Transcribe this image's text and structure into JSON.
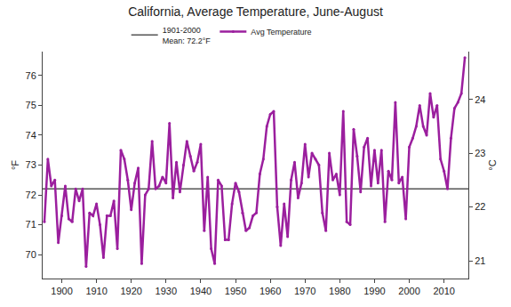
{
  "chart_data": {
    "type": "line",
    "title": "California, Average Temperature, June-August",
    "y_label": "°F",
    "y2_label": "°C",
    "x": [
      1895,
      1896,
      1897,
      1898,
      1899,
      1900,
      1901,
      1902,
      1903,
      1904,
      1905,
      1906,
      1907,
      1908,
      1909,
      1910,
      1911,
      1912,
      1913,
      1914,
      1915,
      1916,
      1917,
      1918,
      1919,
      1920,
      1921,
      1922,
      1923,
      1924,
      1925,
      1926,
      1927,
      1928,
      1929,
      1930,
      1931,
      1932,
      1933,
      1934,
      1935,
      1936,
      1937,
      1938,
      1939,
      1940,
      1941,
      1942,
      1943,
      1944,
      1945,
      1946,
      1947,
      1948,
      1949,
      1950,
      1951,
      1952,
      1953,
      1954,
      1955,
      1956,
      1957,
      1958,
      1959,
      1960,
      1961,
      1962,
      1963,
      1964,
      1965,
      1966,
      1967,
      1968,
      1969,
      1970,
      1971,
      1972,
      1973,
      1974,
      1975,
      1976,
      1977,
      1978,
      1979,
      1980,
      1981,
      1982,
      1983,
      1984,
      1985,
      1986,
      1987,
      1988,
      1989,
      1990,
      1991,
      1992,
      1993,
      1994,
      1995,
      1996,
      1997,
      1998,
      1999,
      2000,
      2001,
      2002,
      2003,
      2004,
      2005,
      2006,
      2007,
      2008,
      2009,
      2010,
      2011,
      2012,
      2013,
      2014,
      2015,
      2016
    ],
    "series": [
      {
        "name": "Avg Temperature",
        "color": "#9b1f9e",
        "marker": "circle",
        "line_style": "solid",
        "values": [
          71.1,
          73.2,
          72.3,
          72.5,
          70.4,
          71.3,
          72.3,
          71.2,
          71.1,
          72.2,
          71.8,
          72.2,
          69.6,
          71.4,
          71.3,
          71.7,
          71.0,
          69.9,
          71.3,
          71.3,
          71.8,
          70.2,
          73.5,
          73.2,
          72.5,
          71.5,
          72.4,
          72.9,
          69.7,
          72.0,
          72.2,
          73.8,
          72.2,
          72.3,
          72.6,
          72.4,
          74.4,
          71.9,
          73.1,
          72.1,
          73.0,
          73.8,
          73.3,
          72.8,
          73.1,
          73.7,
          70.8,
          72.6,
          70.2,
          69.7,
          72.5,
          72.3,
          70.5,
          70.5,
          71.7,
          72.4,
          72.1,
          71.4,
          70.8,
          70.9,
          71.3,
          71.4,
          72.7,
          73.2,
          74.3,
          74.7,
          74.8,
          71.6,
          70.3,
          71.7,
          70.6,
          72.5,
          73.1,
          71.9,
          72.4,
          73.7,
          72.6,
          73.4,
          73.2,
          73.0,
          71.4,
          70.8,
          73.4,
          72.5,
          72.7,
          72.0,
          74.8,
          71.1,
          71.0,
          74.2,
          73.3,
          72.1,
          73.6,
          73.9,
          72.3,
          73.5,
          72.4,
          73.5,
          71.1,
          72.8,
          72.5,
          75.1,
          72.4,
          72.6,
          71.2,
          73.6,
          73.9,
          74.3,
          75.0,
          74.3,
          74.0,
          75.4,
          74.6,
          75.0,
          73.2,
          72.8,
          72.2,
          73.9,
          74.9,
          75.1,
          75.4,
          76.6
        ]
      }
    ],
    "mean": {
      "name": "1901-2000\nMean: 72.2°F",
      "value": 72.2,
      "color": "#555555",
      "line_style": "solid"
    },
    "xlim": [
      1894.5,
      2017
    ],
    "xticks": [
      1900,
      1910,
      1920,
      1930,
      1940,
      1950,
      1960,
      1970,
      1980,
      1990,
      2000,
      2010
    ],
    "ylim": [
      69.2,
      76.8
    ],
    "yticks": [
      70,
      71,
      72,
      73,
      74,
      75,
      76
    ],
    "y2lim": [
      20.67,
      24.89
    ],
    "y2ticks": [
      21,
      22,
      23,
      24
    ],
    "grid": false,
    "legend": "top"
  }
}
